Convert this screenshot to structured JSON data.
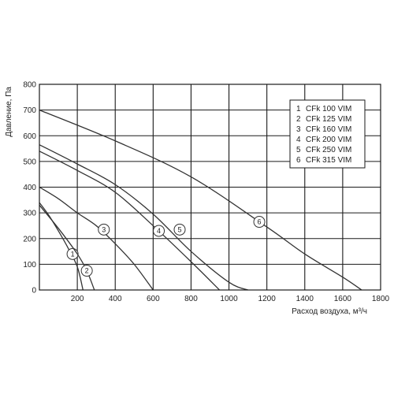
{
  "chart_data": {
    "type": "line",
    "xlabel": "Расход воздуха, м³/ч",
    "ylabel": "Давление, Па",
    "xlim": [
      0,
      1800
    ],
    "ylim": [
      0,
      800
    ],
    "xticks": [
      200,
      400,
      600,
      800,
      1000,
      1200,
      1400,
      1600,
      1800
    ],
    "yticks": [
      0,
      100,
      200,
      300,
      400,
      500,
      600,
      700,
      800
    ],
    "grid": true,
    "legend_position": "top-right",
    "legend": [
      {
        "number": "1",
        "label": "CFk 100 VIM"
      },
      {
        "number": "2",
        "label": "CFk 125 VIM"
      },
      {
        "number": "3",
        "label": "CFk 160 VIM"
      },
      {
        "number": "4",
        "label": "CFk 200 VIM"
      },
      {
        "number": "5",
        "label": "CFk 250 VIM"
      },
      {
        "number": "6",
        "label": "CFk 315 VIM"
      }
    ],
    "series": [
      {
        "marker": "1",
        "marker_at": [
          175,
          140
        ],
        "points": [
          [
            0,
            340
          ],
          [
            50,
            290
          ],
          [
            100,
            230
          ],
          [
            150,
            165
          ],
          [
            200,
            90
          ],
          [
            230,
            0
          ]
        ]
      },
      {
        "marker": "2",
        "marker_at": [
          250,
          75
        ],
        "points": [
          [
            0,
            330
          ],
          [
            100,
            240
          ],
          [
            200,
            140
          ],
          [
            250,
            75
          ],
          [
            290,
            0
          ]
        ]
      },
      {
        "marker": "3",
        "marker_at": [
          340,
          235
        ],
        "points": [
          [
            0,
            400
          ],
          [
            100,
            355
          ],
          [
            200,
            300
          ],
          [
            300,
            250
          ],
          [
            400,
            180
          ],
          [
            500,
            100
          ],
          [
            600,
            0
          ]
        ]
      },
      {
        "marker": "4",
        "marker_at": [
          630,
          230
        ],
        "points": [
          [
            0,
            540
          ],
          [
            200,
            465
          ],
          [
            400,
            380
          ],
          [
            600,
            250
          ],
          [
            800,
            110
          ],
          [
            950,
            0
          ]
        ]
      },
      {
        "marker": "5",
        "marker_at": [
          740,
          235
        ],
        "points": [
          [
            0,
            565
          ],
          [
            200,
            490
          ],
          [
            400,
            410
          ],
          [
            600,
            295
          ],
          [
            800,
            150
          ],
          [
            1000,
            30
          ],
          [
            1100,
            0
          ]
        ]
      },
      {
        "marker": "6",
        "marker_at": [
          1160,
          265
        ],
        "points": [
          [
            0,
            700
          ],
          [
            400,
            580
          ],
          [
            800,
            440
          ],
          [
            1200,
            245
          ],
          [
            1400,
            140
          ],
          [
            1600,
            50
          ],
          [
            1700,
            0
          ]
        ]
      }
    ]
  },
  "colors": {
    "line": "#333333",
    "grid": "#1a1a1a",
    "text": "#222222"
  }
}
